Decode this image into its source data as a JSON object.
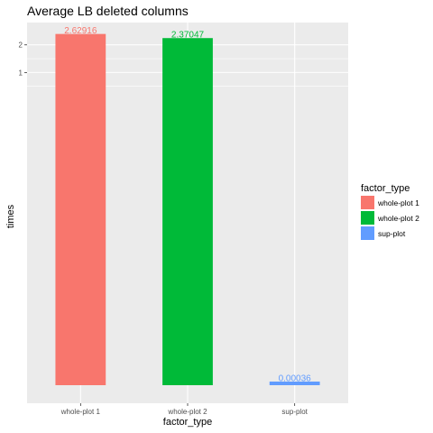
{
  "chart_data": {
    "type": "bar",
    "title": "Average LB deleted columns",
    "xlabel": "factor_type",
    "ylabel": "times",
    "categories": [
      "whole-plot 1",
      "whole-plot 2",
      "sup-plot"
    ],
    "values": [
      2.62916,
      2.37047,
      0.00036
    ],
    "value_labels": [
      "2.62916",
      "2.37047",
      "0.00036"
    ],
    "colors": [
      "#F8766D",
      "#00BA38",
      "#619CFF"
    ],
    "y_scale": "log",
    "y_ticks": [
      {
        "value": 1,
        "label": "1"
      },
      {
        "value": 2,
        "label": "2"
      }
    ],
    "ylim": [
      0.00025,
      3.5
    ],
    "grid": true,
    "legend": {
      "title": "factor_type",
      "position": "right",
      "entries": [
        "whole-plot 1",
        "whole-plot 2",
        "sup-plot"
      ]
    }
  }
}
